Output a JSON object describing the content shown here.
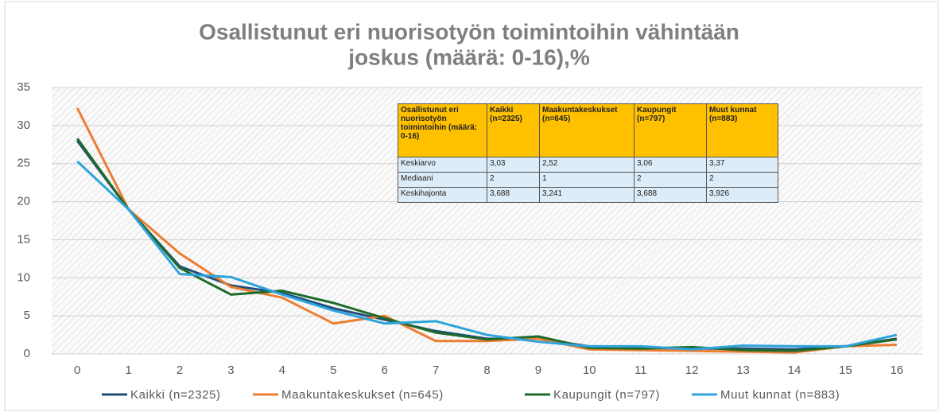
{
  "chart_data": {
    "type": "line",
    "title": "Osallistunut eri nuorisotyön toimintoihin vähintään",
    "subtitle": "joskus (määrä: 0-16),%",
    "categories": [
      "0",
      "1",
      "2",
      "3",
      "4",
      "5",
      "6",
      "7",
      "8",
      "9",
      "10",
      "11",
      "12",
      "13",
      "14",
      "15",
      "16"
    ],
    "series": [
      {
        "name": "Kaikki (n=2325)",
        "color": "#1f4e79",
        "values": [
          28,
          19,
          11.5,
          9,
          8,
          6,
          4.5,
          3,
          2,
          2,
          1,
          0.8,
          0.7,
          0.7,
          0.6,
          1,
          2
        ]
      },
      {
        "name": "Maakuntakeskukset (n=645)",
        "color": "#ed7d31",
        "values": [
          32.3,
          19,
          13.2,
          8.8,
          7.4,
          4,
          5,
          1.7,
          1.7,
          2,
          0.6,
          0.5,
          0.4,
          0.3,
          0.2,
          1,
          1.2
        ]
      },
      {
        "name": "Kaupungit (n=797)",
        "color": "#1e6b2a",
        "values": [
          28.3,
          19,
          11.3,
          7.8,
          8.3,
          6.7,
          4.7,
          2.8,
          1.9,
          2.3,
          0.8,
          0.7,
          0.9,
          0.5,
          0.4,
          1,
          1.9
        ]
      },
      {
        "name": "Muut kunnat (n=883)",
        "color": "#2ea3dc",
        "values": [
          25.3,
          19,
          10.5,
          10.1,
          7.8,
          5.7,
          4,
          4.3,
          2.5,
          1.6,
          1,
          1,
          0.6,
          1.1,
          1,
          1,
          2.5
        ]
      }
    ],
    "ylim": [
      0,
      35
    ],
    "yticks": [
      0,
      5,
      10,
      15,
      20,
      25,
      30,
      35
    ],
    "grid": true,
    "legend": "bottom",
    "table": {
      "header": [
        "Osallistunut eri nuorisotyön toimintoihin (määrä: 0-16)",
        "Kaikki (n=2325)",
        "Maakuntakeskukset (n=645)",
        "Kaupungit (n=797)",
        "Muut kunnat (n=883)"
      ],
      "rows": [
        [
          "Keskiarvo",
          "3,03",
          "2,52",
          "3,06",
          "3,37"
        ],
        [
          "Mediaani",
          "2",
          "1",
          "2",
          "2"
        ],
        [
          "Keskihajonta",
          "3,688",
          "3,241",
          "3,688",
          "3,926"
        ]
      ]
    }
  }
}
